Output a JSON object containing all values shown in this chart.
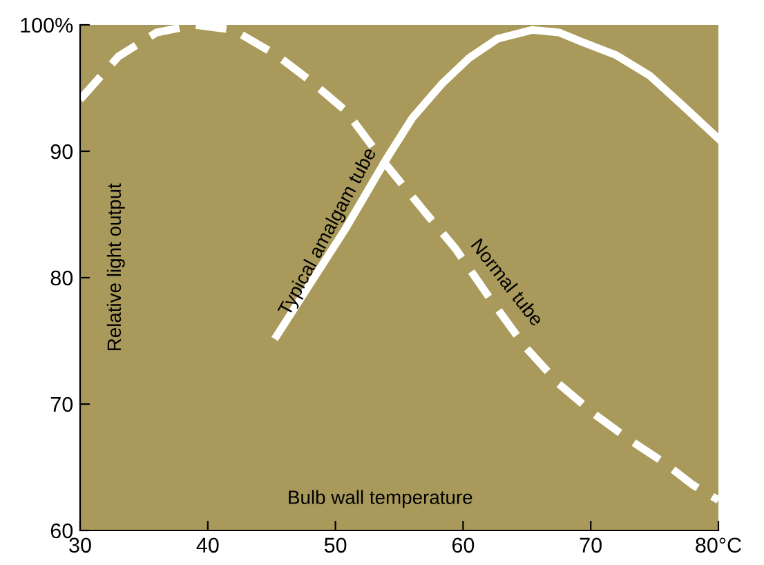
{
  "chart_data": {
    "type": "line",
    "xlabel": "Bulb wall temperature",
    "ylabel": "Relative light output",
    "xlim": [
      30,
      80
    ],
    "ylim": [
      60,
      100
    ],
    "xticks": [
      30,
      40,
      50,
      60,
      70,
      {
        "value": 80,
        "label": "80°C"
      }
    ],
    "yticks": [
      60,
      70,
      80,
      90,
      {
        "value": 100,
        "label": "100%"
      }
    ],
    "grid": false,
    "legend": false,
    "series": [
      {
        "name": "Normal tube",
        "color": "#ffffff",
        "line_style": "dashed",
        "x": [
          30,
          33,
          36,
          39,
          42,
          45.4,
          48,
          50.8,
          54,
          57,
          59.4,
          62,
          64.8,
          67.5,
          70.3,
          73,
          75.7,
          78,
          80
        ],
        "values": [
          94.1,
          97.5,
          99.4,
          100,
          99.6,
          97.6,
          95.6,
          93.2,
          88.9,
          85.2,
          82.3,
          78.5,
          74.6,
          71.6,
          69.2,
          67.2,
          65.4,
          63.6,
          62.4
        ]
      },
      {
        "name": "Typical amalgam tube",
        "color": "#ffffff",
        "line_style": "solid",
        "x": [
          45.4,
          48,
          50.8,
          54,
          56,
          58.4,
          60.5,
          62.7,
          65.4,
          67.5,
          69.2,
          72,
          74.6,
          77,
          80
        ],
        "values": [
          75.4,
          79.5,
          83.9,
          89.4,
          92.6,
          95.4,
          97.4,
          98.9,
          99.6,
          99.4,
          98.7,
          97.6,
          96,
          93.8,
          91.0
        ]
      }
    ]
  }
}
